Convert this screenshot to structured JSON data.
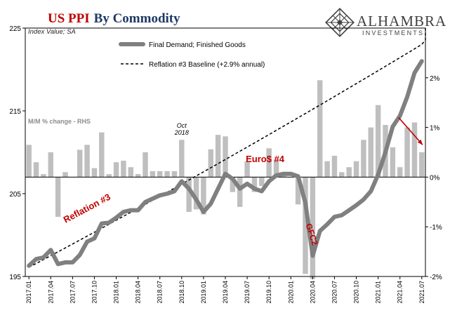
{
  "header": {
    "title_red": "US PPI",
    "title_dark": "By Commodity",
    "brand_name": "ALHAMBRA",
    "brand_sub": "INVESTMENTS"
  },
  "colors": {
    "title_red": "#c00000",
    "title_dark": "#1f3864",
    "line": "#808080",
    "bars": "#bfbfbf",
    "annotation_red": "#c00000",
    "brand": "#404040"
  },
  "chart_data": {
    "type": "bar+line",
    "subtitle": "Index Value; SA",
    "rhs_label": "M/M % change - RHS",
    "left_axis": {
      "min": 195,
      "max": 225,
      "ticks": [
        195,
        205,
        215,
        225
      ],
      "tick_labels": [
        "195",
        "205",
        "215",
        "225"
      ]
    },
    "right_axis": {
      "min": -2,
      "max": 3,
      "ticks": [
        -2,
        -1,
        0,
        1,
        2
      ],
      "tick_labels": [
        "-2%",
        "-1%",
        "0%",
        "1%",
        "2%"
      ]
    },
    "x_ticks": [
      "2017.01",
      "2017.04",
      "2017.07",
      "2017.10",
      "2018.01",
      "2018.04",
      "2018.07",
      "2018.10",
      "2019.01",
      "2019.04",
      "2019.07",
      "2019.10",
      "2020.01",
      "2020.04",
      "2020.07",
      "2020.10",
      "2021.01",
      "2021.04",
      "2021.07"
    ],
    "months": [
      "2017.01",
      "2017.02",
      "2017.03",
      "2017.04",
      "2017.05",
      "2017.06",
      "2017.07",
      "2017.08",
      "2017.09",
      "2017.10",
      "2017.11",
      "2017.12",
      "2018.01",
      "2018.02",
      "2018.03",
      "2018.04",
      "2018.05",
      "2018.06",
      "2018.07",
      "2018.08",
      "2018.09",
      "2018.10",
      "2018.11",
      "2018.12",
      "2019.01",
      "2019.02",
      "2019.03",
      "2019.04",
      "2019.05",
      "2019.06",
      "2019.07",
      "2019.08",
      "2019.09",
      "2019.10",
      "2019.11",
      "2019.12",
      "2020.01",
      "2020.02",
      "2020.03",
      "2020.04",
      "2020.05",
      "2020.06",
      "2020.07",
      "2020.08",
      "2020.09",
      "2020.10",
      "2020.11",
      "2020.12",
      "2021.01",
      "2021.02",
      "2021.03",
      "2021.04",
      "2021.05",
      "2021.06",
      "2021.07"
    ],
    "series": [
      {
        "name": "Final Demand; Finished Goods",
        "kind": "line",
        "axis": "left",
        "values": [
          196.3,
          197.1,
          197.3,
          198.2,
          196.5,
          196.7,
          196.7,
          197.6,
          199.2,
          199.6,
          201.4,
          201.5,
          202.1,
          202.8,
          203.0,
          203.0,
          204.0,
          204.4,
          204.8,
          205.0,
          205.3,
          206.5,
          205.6,
          204.3,
          202.8,
          203.8,
          205.6,
          207.4,
          206.8,
          205.6,
          206.2,
          205.6,
          205.3,
          206.5,
          207.2,
          207.4,
          207.4,
          207.1,
          203.9,
          197.5,
          200.5,
          201.3,
          202.2,
          202.4,
          203.0,
          203.6,
          204.3,
          205.3,
          207.3,
          210.0,
          213.1,
          214.4,
          216.7,
          219.6,
          221.0
        ]
      },
      {
        "name": "M/M % change - RHS",
        "kind": "bar",
        "axis": "right",
        "values": [
          0.65,
          0.3,
          0.06,
          0.5,
          -0.8,
          0.1,
          0.0,
          0.55,
          0.65,
          0.18,
          0.9,
          0.06,
          0.3,
          0.33,
          0.2,
          0.06,
          0.5,
          0.12,
          0.12,
          0.12,
          0.12,
          0.75,
          -0.7,
          -0.65,
          -0.75,
          0.56,
          0.85,
          0.82,
          -0.3,
          -0.6,
          0.32,
          -0.3,
          -0.18,
          0.58,
          0.35,
          0.1,
          0.0,
          -0.55,
          -1.95,
          -2.05,
          1.95,
          0.32,
          0.43,
          0.1,
          0.2,
          0.32,
          0.75,
          1.0,
          1.45,
          1.05,
          0.6,
          0.2,
          1.0,
          1.1,
          0.5
        ]
      },
      {
        "name": "Reflation #3 Baseline (+2.9% annual)",
        "kind": "dashed-line",
        "axis": "left",
        "start": 196.1,
        "annual_growth_pct": 2.9
      }
    ],
    "legend": {
      "placement": "top-center",
      "entries": [
        "Final Demand; Finished Goods",
        "Reflation #3 Baseline (+2.9% annual)"
      ]
    },
    "annotations": [
      {
        "text": "Oct",
        "at": "2018.10"
      },
      {
        "text": "2018",
        "at": "2018.10"
      },
      {
        "text": "Reflation #3",
        "at": "2017.07"
      },
      {
        "text": "Euro$ #4",
        "at": "2019.07"
      },
      {
        "text": "GFC2",
        "at": "2020.04"
      }
    ],
    "grid": false
  }
}
